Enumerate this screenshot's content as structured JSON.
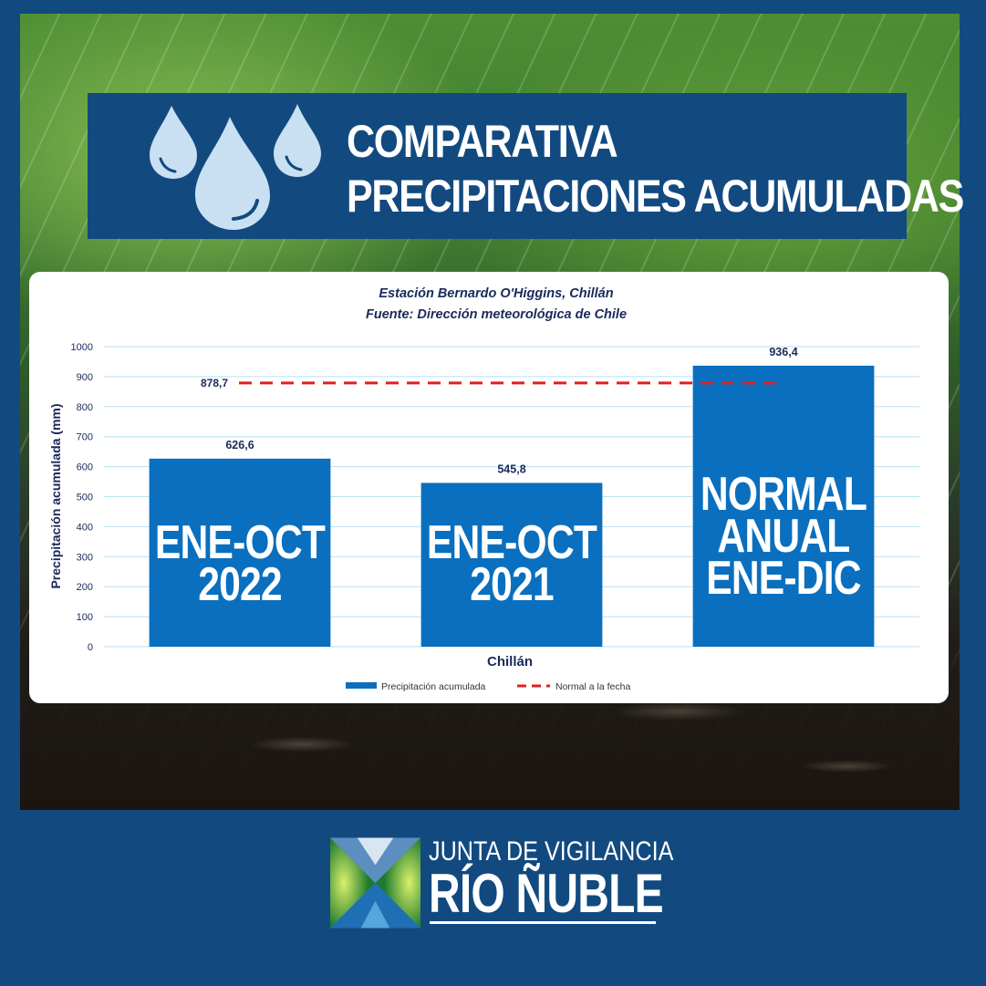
{
  "header": {
    "title_line1": "COMPARATIVA",
    "title_line2": "PRECIPITACIONES ACUMULADAS"
  },
  "chart_data": {
    "type": "bar",
    "title": "Estación Bernardo O'Higgins, Chillán",
    "subtitle": "Fuente: Dirección meteorológica de Chile",
    "xlabel": "Chillán",
    "ylabel": "Precipitación acumulada (mm)",
    "ylim": [
      0,
      1000
    ],
    "yticks": [
      0,
      100,
      200,
      300,
      400,
      500,
      600,
      700,
      800,
      900,
      1000
    ],
    "grid": true,
    "legend_position": "bottom",
    "categories": [
      {
        "line1": "ENE-OCT",
        "line2": "2022",
        "line3": ""
      },
      {
        "line1": "ENE-OCT",
        "line2": "2021",
        "line3": ""
      },
      {
        "line1": "NORMAL",
        "line2": "ANUAL",
        "line3": "ENE-DIC"
      }
    ],
    "series": [
      {
        "name": "Precipitación acumulada",
        "values": [
          626.6,
          545.8,
          936.4
        ],
        "labels": [
          "626,6",
          "545,8",
          "936,4"
        ],
        "color": "#0a6fbe"
      }
    ],
    "reference_line": {
      "name": "Normal a la fecha",
      "value": 878.7,
      "label": "878,7",
      "color": "#e02020"
    }
  },
  "footer": {
    "org_line1": "JUNTA DE VIGILANCIA",
    "org_line2": "RÍO ÑUBLE"
  },
  "colors": {
    "navy": "#124a80",
    "bar": "#0a6fbe",
    "reference": "#e02020",
    "axis_text": "#1a2a5a"
  }
}
